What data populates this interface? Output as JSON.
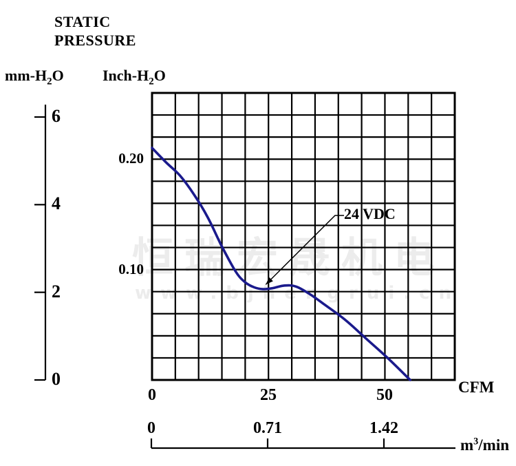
{
  "title": {
    "line1": "STATIC",
    "line2": "PRESSURE"
  },
  "axes": {
    "left_unit": {
      "pre": "mm-H",
      "sub": "2",
      "post": "O"
    },
    "right_unit": {
      "pre": "Inch-H",
      "sub": "2",
      "post": "O"
    },
    "x_unit": "CFM",
    "x2_unit": {
      "pre": "m",
      "sup": "3",
      "post": "/min"
    }
  },
  "watermark": {
    "cjk": "恒瑞宏晟机电",
    "latin": "www.bjhengrui.cn",
    "color": "#ececec"
  },
  "chart_data": {
    "type": "line",
    "title": "STATIC PRESSURE fan curve",
    "grid": {
      "cols": 13,
      "rows": 13,
      "x_per_cell_cfm": 5,
      "y_per_cell_inch": 0.02,
      "grid_on": true
    },
    "x_axis": {
      "unit": "CFM",
      "range": [
        0,
        65
      ],
      "ticks": [
        {
          "v": 0,
          "label": "0"
        },
        {
          "v": 25,
          "label": "25"
        },
        {
          "v": 50,
          "label": "50"
        }
      ]
    },
    "x2_axis": {
      "unit": "m³/min",
      "ticks": [
        {
          "v": 0,
          "label": "0"
        },
        {
          "v": 0.71,
          "label": "0.71"
        },
        {
          "v": 1.42,
          "label": "1.42"
        }
      ]
    },
    "y_axis_inch": {
      "unit": "Inch-H₂O",
      "range": [
        0,
        0.26
      ],
      "ticks": [
        {
          "v": 0.2,
          "label": "0.20"
        },
        {
          "v": 0.1,
          "label": "0.10"
        }
      ]
    },
    "y_axis_mm": {
      "unit": "mm-H₂O",
      "range": [
        0,
        6.6
      ],
      "ticks": [
        {
          "v": 6,
          "label": "6"
        },
        {
          "v": 4,
          "label": "4"
        },
        {
          "v": 2,
          "label": "2"
        },
        {
          "v": 0,
          "label": "0"
        }
      ]
    },
    "series": [
      {
        "name": "24 VDC",
        "color": "#1a1a8c",
        "points": [
          [
            0,
            0.21
          ],
          [
            3,
            0.197
          ],
          [
            6,
            0.185
          ],
          [
            9,
            0.168
          ],
          [
            12,
            0.147
          ],
          [
            15,
            0.121
          ],
          [
            18,
            0.098
          ],
          [
            20,
            0.0885
          ],
          [
            22,
            0.0838
          ],
          [
            24,
            0.0822
          ],
          [
            26,
            0.0832
          ],
          [
            28.5,
            0.0855
          ],
          [
            31,
            0.0845
          ],
          [
            34,
            0.0775
          ],
          [
            37,
            0.0685
          ],
          [
            41.5,
            0.0545
          ],
          [
            46,
            0.0375
          ],
          [
            50.5,
            0.0205
          ],
          [
            55.5,
            0
          ]
        ]
      }
    ],
    "annotation": {
      "label": "24 VDC",
      "points_to": [
        24,
        0.082
      ]
    }
  }
}
